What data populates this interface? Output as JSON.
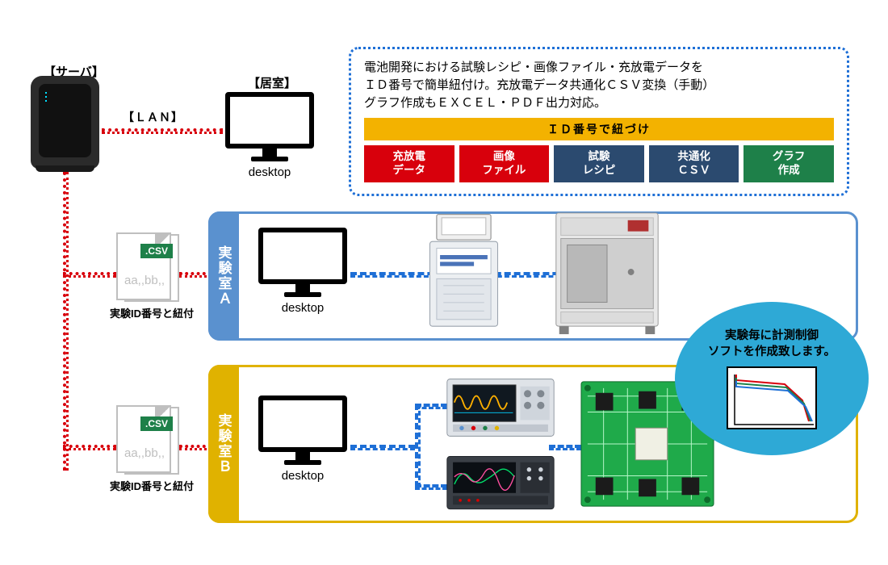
{
  "server_label": "【サーバ】",
  "lan_label": "【ＬＡＮ】",
  "room_label": "【居室】",
  "desktop_caption": "desktop",
  "csv": {
    "ext": ".CSV",
    "sample": "aa,,bb,,",
    "caption": "実験ID番号と紐付"
  },
  "desc": {
    "line1": "電池開発における試験レシピ・画像ファイル・充放電データを",
    "line2": "ＩＤ番号で簡単紐付け。充放電データ共通化ＣＳＶ変換（手動）",
    "line3": "グラフ作成もＥＸＣＥＬ・ＰＤＦ出力対応。",
    "id_bar": "ＩＤ番号で紐づけ",
    "tags": [
      {
        "l1": "充放電",
        "l2": "データ",
        "color": "#d8000c"
      },
      {
        "l1": "画像",
        "l2": "ファイル",
        "color": "#d8000c"
      },
      {
        "l1": "試験",
        "l2": "レシピ",
        "color": "#2b4a6f"
      },
      {
        "l1": "共通化",
        "l2": "ＣＳＶ",
        "color": "#2b4a6f"
      },
      {
        "l1": "グラフ",
        "l2": "作成",
        "color": "#1e8049"
      }
    ]
  },
  "labA": {
    "name": "実験室Ａ"
  },
  "labB": {
    "name": "実験室Ｂ"
  },
  "callout": {
    "line1": "実験毎に計測制御",
    "line2": "ソフトを作成致します。",
    "curves": [
      {
        "color": "#d8000c"
      },
      {
        "color": "#1e8049"
      },
      {
        "color": "#1e6fd6"
      }
    ]
  },
  "colors": {
    "red_dotted": "#d8000c",
    "blue_dashed": "#1e6fd6",
    "frame_blue": "#5a91cf",
    "frame_yellow": "#e0b200",
    "orange_bar": "#f3b200",
    "callout_fill": "#2ea9d6"
  }
}
